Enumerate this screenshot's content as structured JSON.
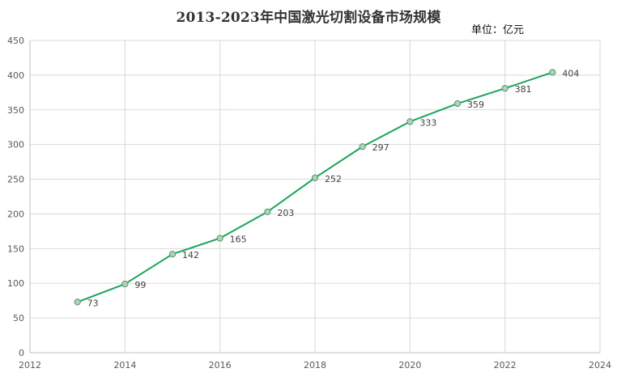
{
  "chart_data": {
    "type": "scatter",
    "title": "2013-2023年中国激光切割设备市场规模",
    "unit": "单位：亿元",
    "xlabel": "",
    "ylabel": "",
    "x": [
      2013,
      2014,
      2015,
      2016,
      2017,
      2018,
      2019,
      2020,
      2021,
      2022,
      2023
    ],
    "y": [
      73,
      99,
      142,
      165,
      203,
      252,
      297,
      333,
      359,
      381,
      404
    ],
    "xlim": [
      2012,
      2024
    ],
    "ylim": [
      0,
      450
    ],
    "xticks": [
      2012,
      2014,
      2016,
      2018,
      2020,
      2022,
      2024
    ],
    "yticks": [
      0,
      50,
      100,
      150,
      200,
      250,
      300,
      350,
      400,
      450
    ],
    "grid": true,
    "legend": "none",
    "line_color": "#1aa35a",
    "marker_fill": "#a9d5b8",
    "marker_stroke": "#5f8f70",
    "grid_color": "#d9d9d9",
    "axis_color": "#bfbfbf"
  }
}
